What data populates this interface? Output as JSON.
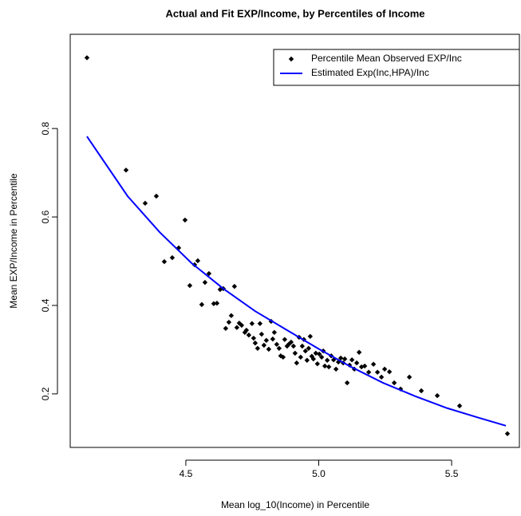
{
  "chart_data": {
    "type": "scatter",
    "title": "Actual and Fit EXP/Income, by Percentiles of Income",
    "x_label": "Mean log_10(Income) in Percentile",
    "y_label": "Mean EXP/Income in Percentile",
    "xlim": [
      4.065,
      5.755
    ],
    "ylim": [
      0.079,
      1.013
    ],
    "xticks": [
      4.5,
      {
        "value": 5,
        "label": "5.0"
      },
      5.5
    ],
    "yticks": [
      0.2,
      0.4,
      0.6,
      0.8
    ],
    "legend": "topright",
    "series": [
      {
        "name": "Percentile Mean Observed EXP/Inc",
        "type": "scatter",
        "color": "#000000",
        "x": [
          4.128,
          4.275,
          4.347,
          4.389,
          4.419,
          4.449,
          4.473,
          4.497,
          4.515,
          4.533,
          4.545,
          4.56,
          4.572,
          4.587,
          4.605,
          4.617,
          4.629,
          4.641,
          4.65,
          4.662,
          4.671,
          4.683,
          4.692,
          4.701,
          4.71,
          4.722,
          4.728,
          4.737,
          4.749,
          4.755,
          4.761,
          4.77,
          4.779,
          4.785,
          4.794,
          4.803,
          4.812,
          4.821,
          4.827,
          4.833,
          4.842,
          4.851,
          4.857,
          4.866,
          4.872,
          4.881,
          4.887,
          4.896,
          4.905,
          4.911,
          4.917,
          4.926,
          4.932,
          4.938,
          4.944,
          4.95,
          4.956,
          4.962,
          4.968,
          4.974,
          4.98,
          4.989,
          4.995,
          5.002,
          5.011,
          5.017,
          5.023,
          5.032,
          5.038,
          5.047,
          5.056,
          5.065,
          5.074,
          5.083,
          5.092,
          5.098,
          5.107,
          5.116,
          5.125,
          5.134,
          5.143,
          5.152,
          5.161,
          5.173,
          5.188,
          5.206,
          5.221,
          5.236,
          5.248,
          5.266,
          5.284,
          5.308,
          5.341,
          5.386,
          5.446,
          5.53,
          5.71
        ],
        "values": [
          0.96,
          0.706,
          0.631,
          0.647,
          0.499,
          0.508,
          0.53,
          0.593,
          0.445,
          0.492,
          0.501,
          0.402,
          0.452,
          0.472,
          0.404,
          0.405,
          0.436,
          0.438,
          0.348,
          0.362,
          0.377,
          0.443,
          0.35,
          0.36,
          0.355,
          0.339,
          0.344,
          0.333,
          0.359,
          0.326,
          0.315,
          0.303,
          0.359,
          0.335,
          0.31,
          0.321,
          0.301,
          0.364,
          0.324,
          0.339,
          0.312,
          0.303,
          0.286,
          0.283,
          0.323,
          0.308,
          0.312,
          0.317,
          0.308,
          0.292,
          0.27,
          0.328,
          0.283,
          0.308,
          0.323,
          0.297,
          0.276,
          0.303,
          0.33,
          0.285,
          0.279,
          0.292,
          0.268,
          0.29,
          0.283,
          0.297,
          0.263,
          0.276,
          0.261,
          0.286,
          0.277,
          0.256,
          0.272,
          0.281,
          0.27,
          0.279,
          0.225,
          0.265,
          0.277,
          0.256,
          0.27,
          0.294,
          0.261,
          0.263,
          0.249,
          0.267,
          0.249,
          0.238,
          0.256,
          0.25,
          0.225,
          0.211,
          0.238,
          0.207,
          0.196,
          0.173,
          0.11
        ]
      },
      {
        "name": "Estimated Exp(Inc,HPA)/Inc",
        "type": "line",
        "color": "#0000ff",
        "x": [
          4.128,
          4.281,
          4.401,
          4.521,
          4.641,
          4.761,
          4.881,
          5.002,
          5.122,
          5.242,
          5.362,
          5.482,
          5.602,
          5.704
        ],
        "values": [
          0.782,
          0.647,
          0.566,
          0.496,
          0.438,
          0.387,
          0.344,
          0.301,
          0.261,
          0.225,
          0.195,
          0.168,
          0.146,
          0.128
        ]
      }
    ]
  }
}
